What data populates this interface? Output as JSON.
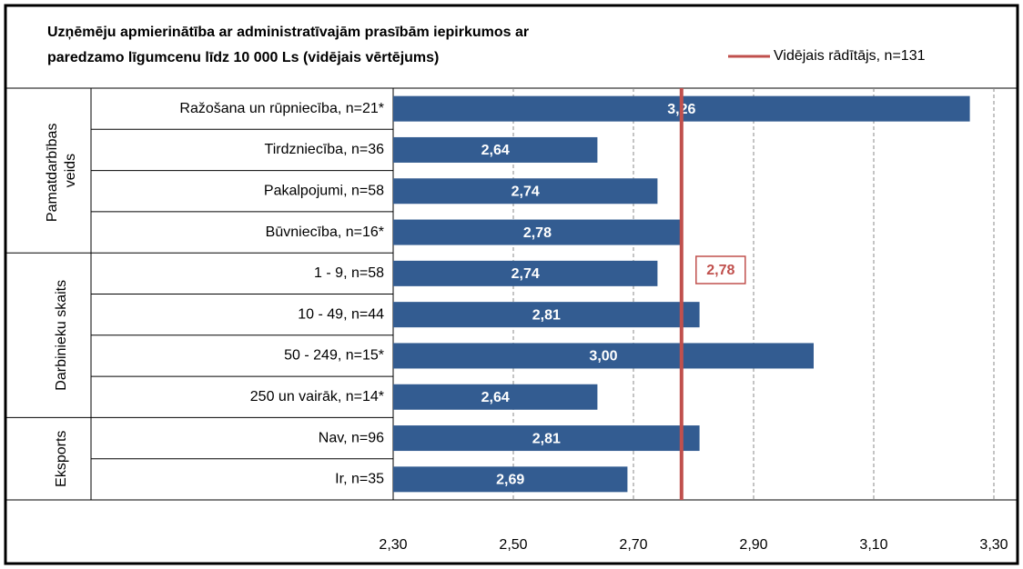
{
  "chart_data": {
    "type": "bar",
    "title": "Uzņēmēju apmierinātība ar administratīvajām prasībām iepirkumos ar paredzamo līgumcenu līdz 10 000 Ls (vidējais vērtējums)",
    "color": "#335c91",
    "groups": [
      {
        "name": "Pamatdarbības veids",
        "categories": [
          "Ražošana un rūpniecība, n=21*",
          "Tirdzniecība, n=36",
          "Pakalpojumi, n=58",
          "Būvniecība, n=16*"
        ],
        "values": [
          3.26,
          2.64,
          2.74,
          2.78
        ],
        "value_labels": [
          "3,26",
          "2,64",
          "2,74",
          "2,78"
        ]
      },
      {
        "name": "Darbinieku skaits",
        "categories": [
          "1 - 9, n=58",
          "10 - 49, n=44",
          "50 - 249, n=15*",
          "250 un vairāk, n=14*"
        ],
        "values": [
          2.74,
          2.81,
          3.0,
          2.64
        ],
        "value_labels": [
          "2,74",
          "2,81",
          "3,00",
          "2,64"
        ]
      },
      {
        "name": "Eksports",
        "categories": [
          "Nav, n=96",
          "Ir, n=35"
        ],
        "values": [
          2.81,
          2.69
        ],
        "value_labels": [
          "2,81",
          "2,69"
        ]
      }
    ],
    "reference": {
      "name": "Vidējais rādītājs, n=131",
      "value": 2.78,
      "value_label": "2,78",
      "color": "#c0504d"
    },
    "xlim": [
      2.3,
      3.3
    ],
    "xticks": [
      {
        "value": 2.3,
        "label": "2,30"
      },
      {
        "value": 2.5,
        "label": "2,50"
      },
      {
        "value": 2.7,
        "label": "2,70"
      },
      {
        "value": 2.9,
        "label": "2,90"
      },
      {
        "value": 3.1,
        "label": "3,10"
      },
      {
        "value": 3.3,
        "label": "3,30"
      }
    ],
    "grid": true
  }
}
